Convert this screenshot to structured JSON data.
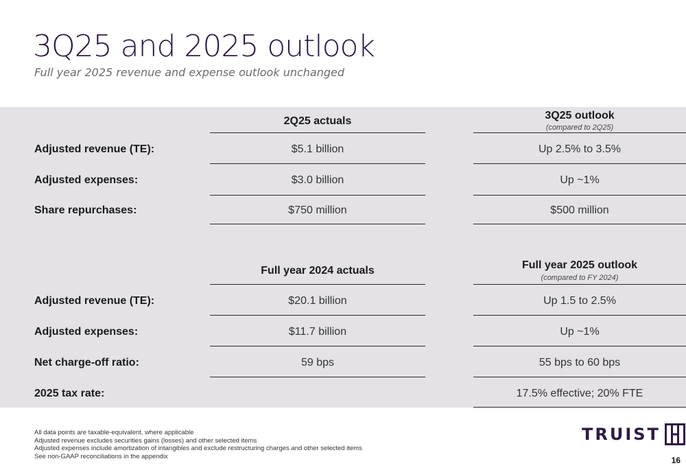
{
  "header": {
    "title": "3Q25 and 2025 outlook",
    "subtitle": "Full year 2025 revenue and expense outlook unchanged"
  },
  "section1": {
    "col_a_header": "2Q25 actuals",
    "col_b_header": "3Q25 outlook",
    "col_b_note": "(compared to 2Q25)",
    "rows": [
      {
        "label": "Adjusted revenue (TE):",
        "a": "$5.1 billion",
        "b": "Up 2.5% to 3.5%"
      },
      {
        "label": "Adjusted expenses:",
        "a": "$3.0 billion",
        "b": "Up ~1%"
      },
      {
        "label": "Share repurchases:",
        "a": "$750 million",
        "b": "$500 million"
      }
    ]
  },
  "section2": {
    "col_a_header": "Full year 2024 actuals",
    "col_b_header": "Full year 2025 outlook",
    "col_b_note": "(compared to FY 2024)",
    "rows": [
      {
        "label": "Adjusted revenue (TE):",
        "a": "$20.1 billion",
        "b": "Up 1.5 to 2.5%"
      },
      {
        "label": "Adjusted expenses:",
        "a": "$11.7 billion",
        "b": "Up ~1%"
      },
      {
        "label": "Net charge-off ratio:",
        "a": "59 bps",
        "b": "55 bps to 60 bps"
      },
      {
        "label": "2025 tax rate:",
        "a": "",
        "b": "17.5% effective; 20% FTE"
      }
    ]
  },
  "footnotes": [
    "All data points are taxable-equivalent, where applicable",
    "Adjusted revenue excludes securities gains (losses) and other selected items",
    "Adjusted expenses include amortization of intangibles and exclude restructuring charges and other selected items",
    "See non-GAAP reconciliations in the appendix"
  ],
  "logo": {
    "text": "TRUIST",
    "icon": "truist-h-logo-icon"
  },
  "page_number": "16",
  "colors": {
    "brand_purple": "#2e1a47",
    "panel_bg": "#e4e2e6"
  }
}
